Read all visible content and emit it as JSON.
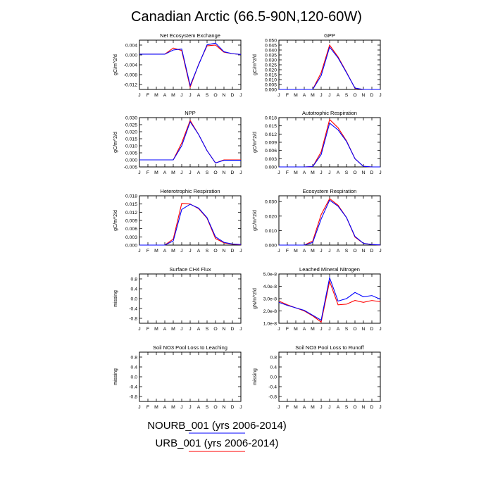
{
  "figure": {
    "title": "Canadian Arctic (66.5-90N,120-60W)"
  },
  "legend": [
    {
      "label": "NOURB_001 (yrs 2006-2014)",
      "color": "#0000ff"
    },
    {
      "label": "URB_001 (yrs 2006-2014)",
      "color": "#ff0000"
    }
  ],
  "chart_data": [
    {
      "type": "line",
      "title": "Net Ecosystem Exchange",
      "ylabel": "gC/m^2/d",
      "categories": [
        "J",
        "F",
        "M",
        "A",
        "M",
        "J",
        "J",
        "A",
        "S",
        "O",
        "N",
        "D",
        "J"
      ],
      "ylim": [
        -0.014,
        0.006
      ],
      "yticks": [
        "0.004",
        "0.000",
        "-0.004",
        "-0.008",
        "-0.012"
      ],
      "ytick_values": [
        0.004,
        0.0,
        -0.004,
        -0.008,
        -0.012
      ],
      "series": [
        {
          "color": "#ff0000",
          "values": [
            0.0003,
            0.0003,
            0.0003,
            0.0003,
            0.0028,
            0.0018,
            -0.0131,
            -0.0038,
            0.0037,
            0.004,
            0.0011,
            0.0005,
            0.0002
          ]
        },
        {
          "color": "#0000ff",
          "values": [
            0.0003,
            0.0003,
            0.0003,
            0.0003,
            0.002,
            0.0024,
            -0.0124,
            -0.004,
            0.0041,
            0.0048,
            0.0013,
            0.0005,
            0.0002
          ]
        }
      ]
    },
    {
      "type": "line",
      "title": "GPP",
      "ylabel": "gC/m^2/d",
      "categories": [
        "J",
        "F",
        "M",
        "A",
        "M",
        "J",
        "J",
        "A",
        "S",
        "O",
        "N",
        "D",
        "J"
      ],
      "ylim": [
        0,
        0.05
      ],
      "yticks": [
        "0.050",
        "0.045",
        "0.040",
        "0.035",
        "0.030",
        "0.025",
        "0.020",
        "0.015",
        "0.010",
        "0.005",
        "0.000"
      ],
      "ytick_values": [
        0.05,
        0.045,
        0.04,
        0.035,
        0.03,
        0.025,
        0.02,
        0.015,
        0.01,
        0.005,
        0.0
      ],
      "series": [
        {
          "color": "#ff0000",
          "values": [
            0,
            0,
            0,
            0,
            0,
            0.017,
            0.045,
            0.033,
            0.0175,
            0.0012,
            0,
            0,
            0
          ]
        },
        {
          "color": "#0000ff",
          "values": [
            0,
            0,
            0,
            0,
            0,
            0.014,
            0.043,
            0.032,
            0.017,
            0.0014,
            0,
            0,
            0
          ]
        }
      ]
    },
    {
      "type": "line",
      "title": "NPP",
      "ylabel": "gC/m^2/d",
      "categories": [
        "J",
        "F",
        "M",
        "A",
        "M",
        "J",
        "J",
        "A",
        "S",
        "O",
        "N",
        "D",
        "J"
      ],
      "ylim": [
        -0.005,
        0.03
      ],
      "yticks": [
        "0.030",
        "0.025",
        "0.020",
        "0.015",
        "0.010",
        "0.005",
        "0.000",
        "-0.005"
      ],
      "ytick_values": [
        0.03,
        0.025,
        0.02,
        0.015,
        0.01,
        0.005,
        0.0,
        -0.005
      ],
      "series": [
        {
          "color": "#ff0000",
          "values": [
            0,
            0,
            0,
            0,
            0,
            0.012,
            0.028,
            0.018,
            0.0065,
            -0.0022,
            0,
            0,
            0
          ]
        },
        {
          "color": "#0000ff",
          "values": [
            0,
            0,
            0,
            0,
            0,
            0.01,
            0.027,
            0.018,
            0.0065,
            -0.0022,
            -0.0003,
            -0.0003,
            -0.0003
          ]
        }
      ]
    },
    {
      "type": "line",
      "title": "Autotrophic Respiration",
      "ylabel": "gC/m^2/d",
      "categories": [
        "J",
        "F",
        "M",
        "A",
        "M",
        "J",
        "J",
        "A",
        "S",
        "O",
        "N",
        "D",
        "J"
      ],
      "ylim": [
        0,
        0.018
      ],
      "yticks": [
        "0.018",
        "0.015",
        "0.012",
        "0.009",
        "0.006",
        "0.003",
        "0.000"
      ],
      "ytick_values": [
        0.018,
        0.015,
        0.012,
        0.009,
        0.006,
        0.003,
        0.0
      ],
      "series": [
        {
          "color": "#ff0000",
          "values": [
            0,
            0,
            0,
            0,
            0.0001,
            0.0055,
            0.0173,
            0.0143,
            0.0095,
            0.003,
            0.0002,
            0,
            0
          ]
        },
        {
          "color": "#0000ff",
          "values": [
            0,
            0,
            0,
            0,
            0.0001,
            0.0045,
            0.016,
            0.0135,
            0.0093,
            0.003,
            0.0002,
            0,
            0
          ]
        }
      ]
    },
    {
      "type": "line",
      "title": "Heterotrophic Respiration",
      "ylabel": "gC/m^2/d",
      "categories": [
        "J",
        "F",
        "M",
        "A",
        "M",
        "J",
        "J",
        "A",
        "S",
        "O",
        "N",
        "D",
        "J"
      ],
      "ylim": [
        0,
        0.018
      ],
      "yticks": [
        "0.018",
        "0.015",
        "0.012",
        "0.009",
        "0.006",
        "0.003",
        "0.000"
      ],
      "ytick_values": [
        0.018,
        0.015,
        0.012,
        0.009,
        0.006,
        0.003,
        0.0
      ],
      "series": [
        {
          "color": "#ff0000",
          "values": [
            0,
            0,
            0,
            0,
            0.0022,
            0.0152,
            0.015,
            0.0133,
            0.0098,
            0.0024,
            0.0008,
            0.0003,
            0.0001
          ]
        },
        {
          "color": "#0000ff",
          "values": [
            0,
            0,
            0,
            0,
            0.0015,
            0.013,
            0.0149,
            0.0135,
            0.01,
            0.003,
            0.001,
            0.0004,
            0.0002
          ]
        }
      ]
    },
    {
      "type": "line",
      "title": "Ecosystem Respiration",
      "ylabel": "gC/m^2/d",
      "categories": [
        "J",
        "F",
        "M",
        "A",
        "M",
        "J",
        "J",
        "A",
        "S",
        "O",
        "N",
        "D",
        "J"
      ],
      "ylim": [
        0,
        0.034
      ],
      "yticks": [
        "0.030",
        "0.020",
        "0.010",
        "0.000"
      ],
      "ytick_values": [
        0.03,
        0.02,
        0.01,
        0.0
      ],
      "series": [
        {
          "color": "#ff0000",
          "values": [
            0,
            0,
            0,
            0,
            0.0028,
            0.021,
            0.032,
            0.0275,
            0.019,
            0.0055,
            0.0012,
            0.0004,
            0.0001
          ]
        },
        {
          "color": "#0000ff",
          "values": [
            0,
            0,
            0,
            0,
            0.0018,
            0.018,
            0.031,
            0.0268,
            0.019,
            0.006,
            0.0012,
            0.0004,
            0.0001
          ]
        }
      ]
    },
    {
      "type": "line",
      "title": "Surface CH4 Flux",
      "ylabel": "missing",
      "categories": [
        "J",
        "F",
        "M",
        "A",
        "M",
        "J",
        "J",
        "A",
        "S",
        "O",
        "N",
        "D",
        "J"
      ],
      "ylim": [
        -1,
        1
      ],
      "yticks": [
        "0.8",
        "0.4",
        "0.0",
        "-0.4",
        "-0.8"
      ],
      "ytick_values": [
        0.8,
        0.4,
        0.0,
        -0.4,
        -0.8
      ],
      "series": []
    },
    {
      "type": "line",
      "title": "Leached Mineral Nitrogen",
      "ylabel": "gN/m^2/d",
      "categories": [
        "J",
        "F",
        "M",
        "A",
        "M",
        "J",
        "J",
        "A",
        "S",
        "O",
        "N",
        "D",
        "J"
      ],
      "ylim": [
        1e-08,
        5e-08
      ],
      "yticks": [
        "5.0e-8",
        "4.0e-8",
        "3.0e-8",
        "2.0e-8",
        "1.0e-8"
      ],
      "ytick_values": [
        5e-08,
        4e-08,
        3e-08,
        2e-08,
        1e-08
      ],
      "series": [
        {
          "color": "#ff0000",
          "values": [
            2.8e-08,
            2.5e-08,
            2.25e-08,
            2e-08,
            1.6e-08,
            1.1e-08,
            4.4e-08,
            2.5e-08,
            2.55e-08,
            2.85e-08,
            2.7e-08,
            2.85e-08,
            2.75e-08
          ]
        },
        {
          "color": "#0000ff",
          "values": [
            2.7e-08,
            2.45e-08,
            2.25e-08,
            2.05e-08,
            1.65e-08,
            1.25e-08,
            4.7e-08,
            2.8e-08,
            3e-08,
            3.5e-08,
            3.15e-08,
            3.25e-08,
            2.95e-08
          ]
        }
      ]
    },
    {
      "type": "line",
      "title": "Soil NO3 Pool Loss to Leaching",
      "ylabel": "missing",
      "categories": [
        "J",
        "F",
        "M",
        "A",
        "M",
        "J",
        "J",
        "A",
        "S",
        "O",
        "N",
        "D",
        "J"
      ],
      "ylim": [
        -1,
        1
      ],
      "yticks": [
        "0.8",
        "0.4",
        "0.0",
        "-0.4",
        "-0.8"
      ],
      "ytick_values": [
        0.8,
        0.4,
        0.0,
        -0.4,
        -0.8
      ],
      "series": []
    },
    {
      "type": "line",
      "title": "Soil NO3 Pool Loss to Runoff",
      "ylabel": "missing",
      "categories": [
        "J",
        "F",
        "M",
        "A",
        "M",
        "J",
        "J",
        "A",
        "S",
        "O",
        "N",
        "D",
        "J"
      ],
      "ylim": [
        -1,
        1
      ],
      "yticks": [
        "0.8",
        "0.4",
        "0.0",
        "-0.4",
        "-0.8"
      ],
      "ytick_values": [
        0.8,
        0.4,
        0.0,
        -0.4,
        -0.8
      ],
      "series": []
    }
  ]
}
